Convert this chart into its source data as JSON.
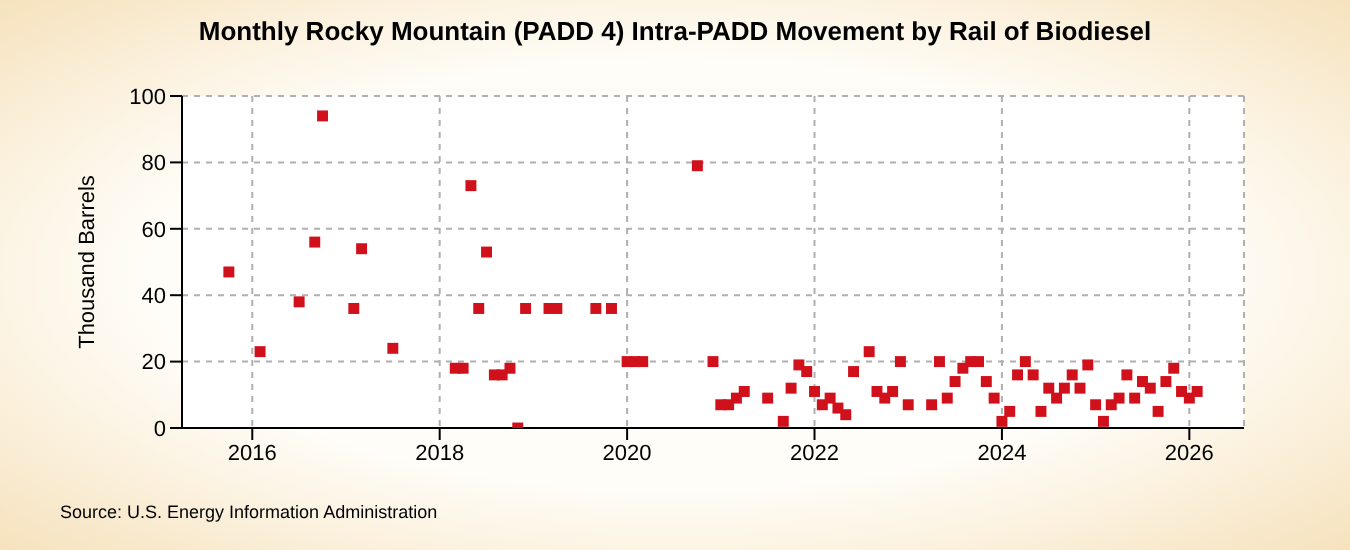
{
  "chart_data": {
    "type": "scatter",
    "title": "Monthly Rocky Mountain (PADD 4) Intra-PADD Movement by Rail of Biodiesel",
    "ylabel": "Thousand Barrels",
    "annotations": [
      "Source: U.S. Energy Information Administration"
    ],
    "x": [
      "2015-10",
      "2016-02",
      "2016-07",
      "2016-09",
      "2016-10",
      "2017-02",
      "2017-03",
      "2017-07",
      "2018-03",
      "2018-04",
      "2018-05",
      "2018-06",
      "2018-07",
      "2018-08",
      "2018-09",
      "2018-10",
      "2018-11",
      "2018-12",
      "2019-03",
      "2019-04",
      "2019-09",
      "2019-11",
      "2020-01",
      "2020-02",
      "2020-03",
      "2020-10",
      "2020-12",
      "2021-01",
      "2021-02",
      "2021-03",
      "2021-04",
      "2021-07",
      "2021-09",
      "2021-10",
      "2021-11",
      "2021-12",
      "2022-01",
      "2022-02",
      "2022-03",
      "2022-04",
      "2022-05",
      "2022-06",
      "2022-08",
      "2022-09",
      "2022-10",
      "2022-11",
      "2022-12",
      "2023-01",
      "2023-04",
      "2023-05",
      "2023-06",
      "2023-07",
      "2023-08",
      "2023-09",
      "2023-10",
      "2023-11",
      "2023-12",
      "2024-01",
      "2024-02",
      "2024-03",
      "2024-04",
      "2024-05",
      "2024-06",
      "2024-07",
      "2024-08",
      "2024-09",
      "2024-10",
      "2024-11",
      "2024-12",
      "2025-01",
      "2025-02",
      "2025-03",
      "2025-04",
      "2025-05",
      "2025-06",
      "2025-07",
      "2025-08",
      "2025-09",
      "2025-10",
      "2025-11",
      "2025-12",
      "2026-01",
      "2026-02"
    ],
    "series": [
      {
        "color": "#d0111b",
        "values": [
          47,
          23,
          38,
          56,
          94,
          36,
          54,
          24,
          18,
          18,
          73,
          36,
          53,
          16,
          16,
          18,
          0,
          36,
          36,
          36,
          36,
          36,
          20,
          20,
          20,
          79,
          20,
          7,
          7,
          9,
          11,
          9,
          2,
          12,
          19,
          17,
          11,
          7,
          9,
          6,
          4,
          17,
          23,
          11,
          9,
          11,
          20,
          7,
          7,
          20,
          9,
          14,
          18,
          20,
          20,
          14,
          9,
          2,
          5,
          16,
          20,
          16,
          5,
          12,
          9,
          12,
          16,
          12,
          19,
          7,
          2,
          7,
          9,
          16,
          9,
          14,
          12,
          5,
          14,
          18,
          11,
          9,
          11
        ]
      }
    ],
    "xlim": [
      "2015-04",
      "2026-08"
    ],
    "xticks": [
      "2016",
      "2018",
      "2020",
      "2022",
      "2024",
      "2026"
    ],
    "ylim": [
      0,
      100
    ],
    "yticks": [
      0,
      20,
      40,
      60,
      80,
      100
    ],
    "grid": true,
    "marker": "square"
  }
}
